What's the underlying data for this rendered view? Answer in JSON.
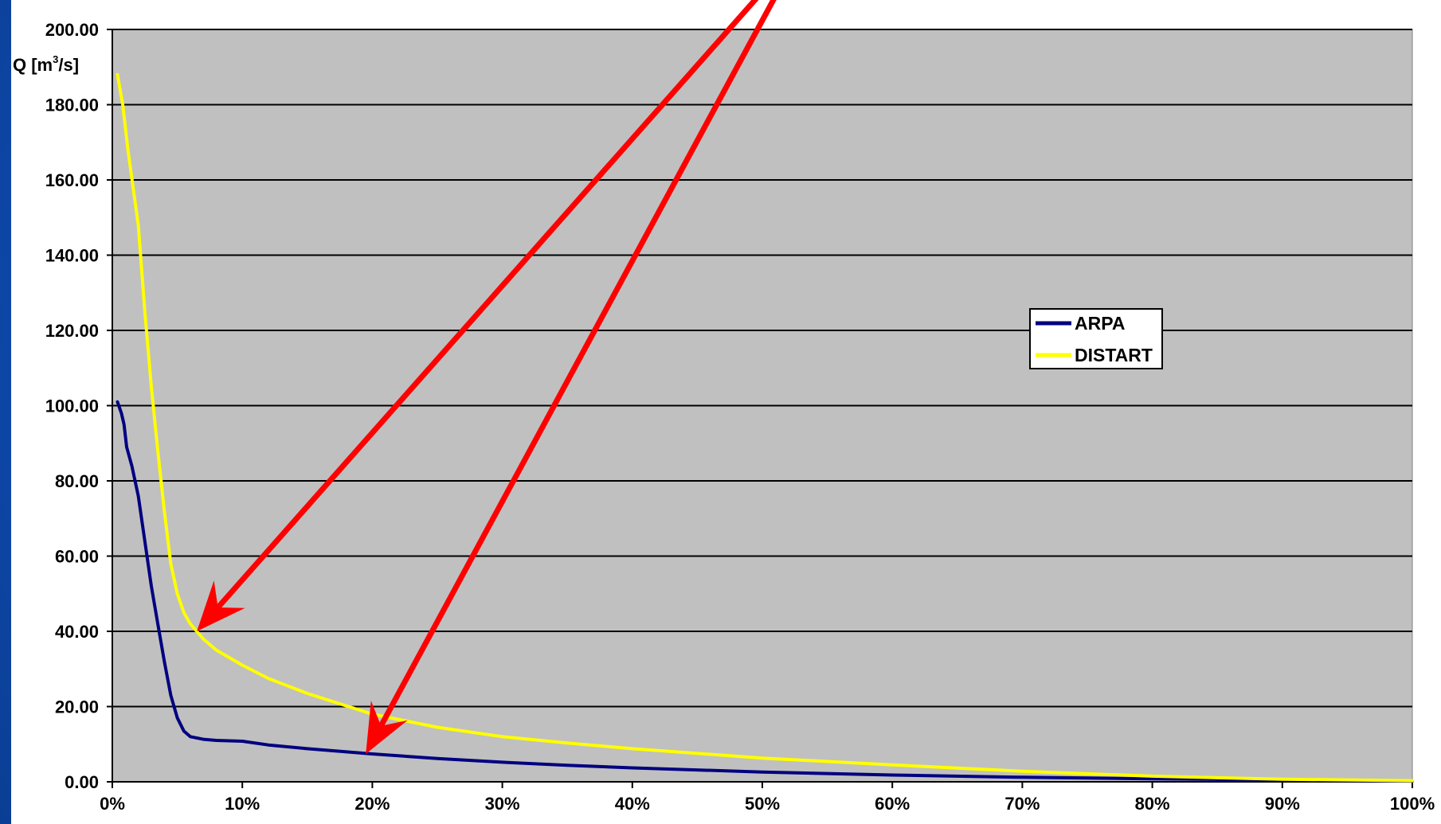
{
  "chart_data": {
    "type": "line",
    "ylabel": "Q [m3/s]",
    "ylabel_base": "Q [m",
    "ylabel_sup": "3",
    "ylabel_tail": "/s]",
    "xlim": [
      0,
      100
    ],
    "ylim": [
      0,
      200
    ],
    "x_tick_labels": [
      "0%",
      "10%",
      "20%",
      "30%",
      "40%",
      "50%",
      "60%",
      "70%",
      "80%",
      "90%",
      "100%"
    ],
    "x_ticks": [
      0,
      10,
      20,
      30,
      40,
      50,
      60,
      70,
      80,
      90,
      100
    ],
    "y_tick_labels": [
      "0.00",
      "20.00",
      "40.00",
      "60.00",
      "80.00",
      "100.00",
      "120.00",
      "140.00",
      "160.00",
      "180.00",
      "200.00"
    ],
    "y_ticks": [
      0,
      20,
      40,
      60,
      80,
      100,
      120,
      140,
      160,
      180,
      200
    ],
    "grid": "horizontal",
    "legend_position": "right-middle",
    "colors": {
      "plot_background": "#c0c0c0",
      "grid": "#000000",
      "annotation_arrows": "#ff0000"
    },
    "series": [
      {
        "name": "ARPA",
        "color": "#000080",
        "points": [
          [
            0.4,
            101
          ],
          [
            0.7,
            98
          ],
          [
            0.9,
            95
          ],
          [
            1.1,
            89
          ],
          [
            1.5,
            84
          ],
          [
            2,
            76
          ],
          [
            2.5,
            64
          ],
          [
            3,
            52
          ],
          [
            3.5,
            42
          ],
          [
            4,
            32
          ],
          [
            4.5,
            23
          ],
          [
            5,
            17
          ],
          [
            5.5,
            13.5
          ],
          [
            6,
            12
          ],
          [
            7,
            11.3
          ],
          [
            8,
            11
          ],
          [
            10,
            10.8
          ],
          [
            12,
            9.8
          ],
          [
            15,
            8.8
          ],
          [
            20,
            7.4
          ],
          [
            25,
            6.2
          ],
          [
            30,
            5.2
          ],
          [
            35,
            4.4
          ],
          [
            40,
            3.7
          ],
          [
            50,
            2.6
          ],
          [
            60,
            1.8
          ],
          [
            70,
            1.2
          ],
          [
            80,
            0.8
          ],
          [
            90,
            0.5
          ],
          [
            100,
            0.2
          ]
        ]
      },
      {
        "name": "DISTART",
        "color": "#ffff00",
        "points": [
          [
            0.4,
            188
          ],
          [
            0.8,
            180
          ],
          [
            1.2,
            168
          ],
          [
            2,
            148
          ],
          [
            2.5,
            125
          ],
          [
            3,
            105
          ],
          [
            3.5,
            88
          ],
          [
            4,
            72
          ],
          [
            4.5,
            58
          ],
          [
            5,
            50
          ],
          [
            5.5,
            45
          ],
          [
            6,
            42
          ],
          [
            7,
            38
          ],
          [
            8,
            35
          ],
          [
            10,
            31
          ],
          [
            12,
            27.5
          ],
          [
            15,
            23.5
          ],
          [
            20,
            18
          ],
          [
            25,
            14.5
          ],
          [
            30,
            12
          ],
          [
            35,
            10.3
          ],
          [
            40,
            8.8
          ],
          [
            50,
            6.3
          ],
          [
            60,
            4.5
          ],
          [
            70,
            2.8
          ],
          [
            80,
            1.5
          ],
          [
            90,
            0.7
          ],
          [
            100,
            0.3
          ]
        ]
      }
    ],
    "annotations": [
      {
        "type": "arrow",
        "color": "#ff0000",
        "from": [
          50.5,
          212
        ],
        "to": [
          6.5,
          40
        ]
      },
      {
        "type": "arrow",
        "color": "#ff0000",
        "from": [
          51.5,
          212
        ],
        "to": [
          19.5,
          7.4
        ]
      }
    ]
  }
}
